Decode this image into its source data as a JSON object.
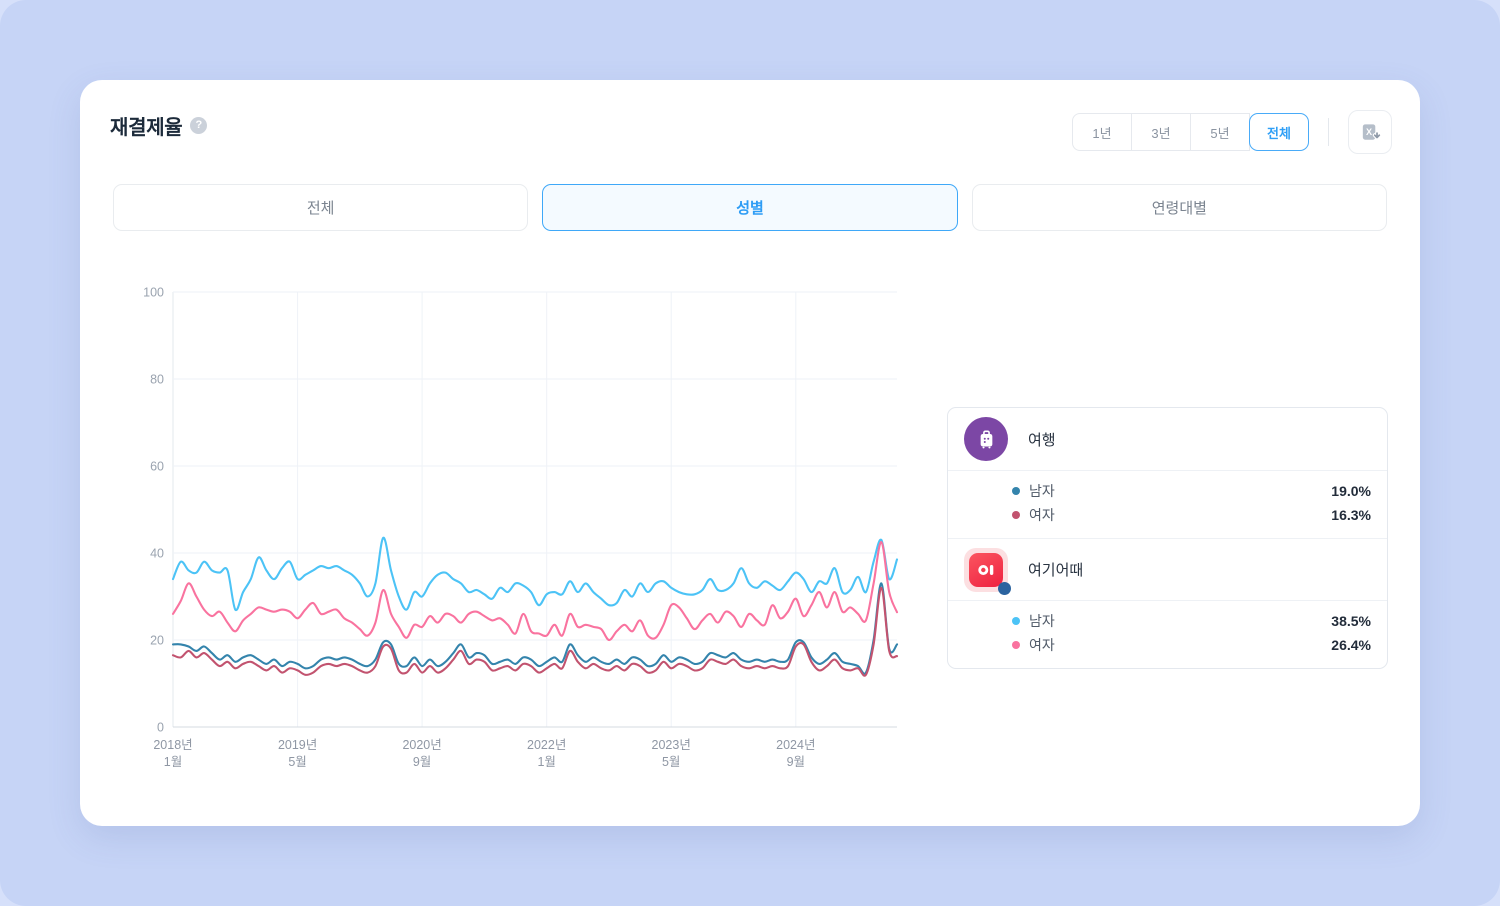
{
  "header": {
    "title": "재결제율",
    "help_glyph": "?",
    "range_buttons": [
      {
        "label": "1년",
        "selected": false
      },
      {
        "label": "3년",
        "selected": false
      },
      {
        "label": "5년",
        "selected": false
      },
      {
        "label": "전체",
        "selected": true
      }
    ]
  },
  "tabs": [
    {
      "label": "전체",
      "selected": false
    },
    {
      "label": "성별",
      "selected": true
    },
    {
      "label": "연령대별",
      "selected": false
    }
  ],
  "legend": {
    "groups": [
      {
        "name": "여행",
        "icon": "luggage-icon",
        "icon_color": "#7c47a5",
        "items": [
          {
            "label": "남자",
            "color": "#3484ac",
            "value": "19.0%"
          },
          {
            "label": "여자",
            "color": "#c2536f",
            "value": "16.3%"
          }
        ]
      },
      {
        "name": "여기어때",
        "icon": "yeogieottae-app-icon",
        "icon_color": "#f43b4e",
        "items": [
          {
            "label": "남자",
            "color": "#4cc3f6",
            "value": "38.5%"
          },
          {
            "label": "여자",
            "color": "#f9739f",
            "value": "26.4%"
          }
        ]
      }
    ]
  },
  "chart_data": {
    "type": "line",
    "title": "재결제율",
    "unit": "%",
    "grid": true,
    "legend_position": "right",
    "ylim": [
      0,
      100
    ],
    "y_ticks": [
      0,
      20,
      40,
      60,
      80,
      100
    ],
    "x_range": {
      "start": "2018-01",
      "end": "2025-10",
      "interval": "monthly",
      "points": 94
    },
    "x_ticks": [
      {
        "index": 0,
        "line1": "2018년",
        "line2": "1월"
      },
      {
        "index": 16,
        "line1": "2019년",
        "line2": "5월"
      },
      {
        "index": 32,
        "line1": "2020년",
        "line2": "9월"
      },
      {
        "index": 48,
        "line1": "2022년",
        "line2": "1월"
      },
      {
        "index": 64,
        "line1": "2023년",
        "line2": "5월"
      },
      {
        "index": 80,
        "line1": "2024년",
        "line2": "9월"
      }
    ],
    "series": [
      {
        "name": "여행 남자",
        "color": "#3484ac",
        "values": [
          19,
          19,
          18.5,
          17.5,
          18.5,
          17,
          15.5,
          16.5,
          15,
          16,
          16.5,
          15.5,
          14.5,
          15.5,
          14,
          15,
          14.5,
          13.5,
          14,
          15.5,
          16,
          15.5,
          16,
          15.5,
          14.5,
          14,
          15.5,
          19.5,
          19,
          14.5,
          14,
          16,
          14,
          15.5,
          14,
          15,
          17,
          19,
          16,
          17,
          16.5,
          14.5,
          15,
          15.5,
          14.5,
          16,
          15.5,
          14,
          15,
          16,
          15,
          19,
          16.5,
          15,
          16,
          15,
          14.5,
          15.5,
          14.5,
          16,
          15.5,
          14,
          14.5,
          16.5,
          15,
          16,
          15.5,
          14.5,
          15,
          17,
          16.5,
          16,
          17,
          15.5,
          15,
          15.5,
          15,
          15.5,
          15,
          15.5,
          19.5,
          19.5,
          16,
          14.5,
          15.5,
          17,
          15,
          14.5,
          14,
          12.5,
          20,
          33,
          18,
          19
        ]
      },
      {
        "name": "여행 여자",
        "color": "#c2536f",
        "values": [
          16.5,
          16,
          17.5,
          16,
          17,
          15.5,
          14,
          15,
          13.5,
          14.5,
          15,
          14,
          13,
          14,
          12.5,
          13.5,
          13,
          12,
          12.5,
          14,
          14.5,
          14,
          14.5,
          14,
          13,
          12.5,
          14,
          18.5,
          18,
          13,
          12.5,
          14.5,
          12.5,
          14,
          12.5,
          13.5,
          15.5,
          17.5,
          14.5,
          15.5,
          15,
          13,
          13.5,
          14,
          13,
          14.5,
          14,
          12.5,
          13.5,
          14.5,
          13.5,
          17.5,
          15,
          13.5,
          14.5,
          13.5,
          13,
          14,
          13,
          14.5,
          14,
          12.5,
          13,
          15,
          13.5,
          14.5,
          14,
          13,
          13.5,
          15.5,
          15,
          14.5,
          15.5,
          14,
          13.5,
          14,
          13.5,
          14,
          13.5,
          14,
          18.5,
          19,
          15,
          13,
          14,
          15.5,
          13.5,
          13,
          13.5,
          12,
          19,
          32,
          17.5,
          16.3
        ]
      },
      {
        "name": "여기어때 남자",
        "color": "#4cc3f6",
        "values": [
          34,
          38,
          36,
          35.5,
          38,
          36,
          35.5,
          36,
          27,
          31,
          34,
          39,
          36,
          34,
          36.5,
          38,
          34,
          35,
          36,
          37,
          36.5,
          37,
          36,
          35,
          33,
          30,
          33,
          43.5,
          36,
          30,
          27,
          31,
          30,
          33,
          35,
          35.5,
          34,
          33,
          31,
          31.5,
          30.5,
          29.5,
          32,
          31,
          33,
          32.5,
          31,
          28,
          30.5,
          31,
          30.5,
          33.5,
          31,
          33,
          31,
          29.5,
          28,
          28.5,
          31.5,
          30,
          33,
          31,
          33,
          33.5,
          32,
          31,
          30.5,
          30.5,
          31.5,
          34,
          31.5,
          31.5,
          33,
          36.5,
          33,
          32,
          33.5,
          32.5,
          31.5,
          33.5,
          35.5,
          34,
          31,
          33.5,
          33,
          36.5,
          31,
          31.5,
          34.5,
          31,
          38,
          43,
          34,
          38.5
        ]
      },
      {
        "name": "여기어때 여자",
        "color": "#f9739f",
        "values": [
          26,
          29,
          33,
          30,
          27,
          25.5,
          26.5,
          24,
          22,
          24.5,
          26,
          27.5,
          27,
          26.5,
          27,
          26.5,
          25,
          27,
          28.5,
          26,
          26.5,
          27,
          25,
          24,
          22.5,
          21,
          24,
          31.5,
          26,
          23,
          20.5,
          23.5,
          23,
          25.5,
          24,
          26,
          25.5,
          24,
          26,
          26.5,
          25.5,
          24.5,
          25,
          23.5,
          21.5,
          26,
          22,
          21.5,
          21,
          23.5,
          21,
          26,
          23,
          23.5,
          23,
          22.5,
          20,
          22,
          23.5,
          22,
          24.5,
          21,
          20.5,
          23.5,
          28,
          27.5,
          25,
          22.5,
          24.5,
          26,
          24,
          26.5,
          25.5,
          23,
          26,
          24.5,
          23.5,
          28,
          25,
          26.5,
          29.5,
          25.5,
          28,
          31,
          27.5,
          31,
          26.5,
          27.5,
          26,
          24.5,
          33,
          42.5,
          31,
          26.4
        ]
      }
    ]
  }
}
